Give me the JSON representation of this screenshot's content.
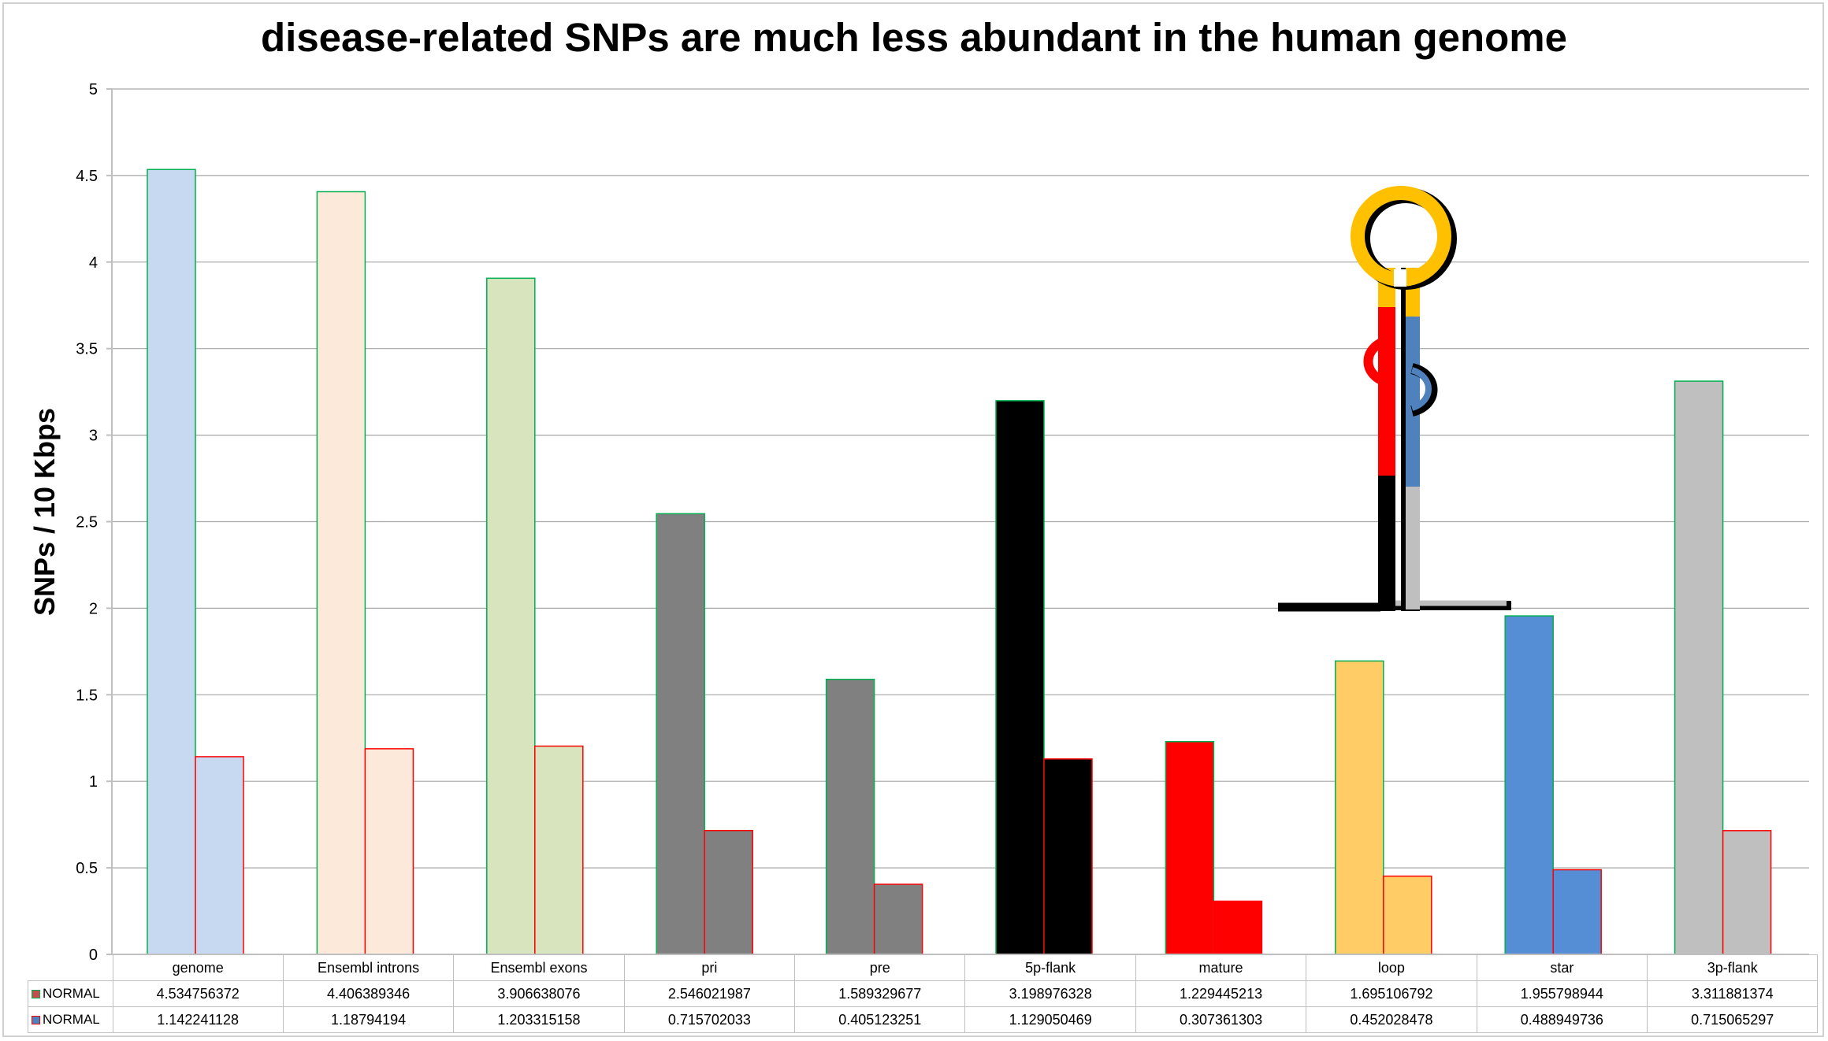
{
  "chart_data": {
    "type": "bar",
    "title": "disease-related SNPs are much less abundant in the human genome",
    "ylabel": "SNPs / 10 Kbps",
    "xlabel": "",
    "ylim": [
      0,
      5
    ],
    "yticks": [
      "0",
      "0.5",
      "1",
      "1.5",
      "2",
      "2.5",
      "3",
      "3.5",
      "4",
      "4.5",
      "5"
    ],
    "grid": true,
    "legend": "data-table",
    "categories": [
      "genome",
      "Ensembl introns",
      "Ensembl exons",
      "pri",
      "pre",
      "5p-flank",
      "mature",
      "loop",
      "star",
      "3p-flank"
    ],
    "fill_colors": [
      "#c6d9f1",
      "#fde9d9",
      "#d7e4bd",
      "#808080",
      "#808080",
      "#000000",
      "#ff0000",
      "#ffcc66",
      "#558ed5",
      "#bfbfbf"
    ],
    "series": [
      {
        "name": "NORMAL",
        "outline": "#00b050",
        "swatch": "#c0504d",
        "values": [
          4.534756372,
          4.406389346,
          3.906638076,
          2.546021987,
          1.589329677,
          3.198976328,
          1.229445213,
          1.695106792,
          1.955798944,
          3.311881374
        ],
        "labels": [
          "4.534756372",
          "4.406389346",
          "3.906638076",
          "2.546021987",
          "1.589329677",
          "3.198976328",
          "1.229445213",
          "1.695106792",
          "1.955798944",
          "3.311881374"
        ]
      },
      {
        "name": "NORMAL",
        "outline": "#ff0000",
        "swatch": "#4f81bd",
        "values": [
          1.142241128,
          1.18794194,
          1.203315158,
          0.715702033,
          0.405123251,
          1.129050469,
          0.307361303,
          0.452028478,
          0.488949736,
          0.715065297
        ],
        "labels": [
          "1.142241128",
          "1.18794194",
          "1.203315158",
          "0.715702033",
          "0.405123251",
          "1.129050469",
          "0.307361303",
          "0.452028478",
          "0.488949736",
          "0.715065297"
        ]
      }
    ]
  },
  "inset_diagram": {
    "name": "hairpin-diagram",
    "colors": {
      "loop": "#ffc000",
      "mature": "#ff0000",
      "star": "#4f81bd",
      "five_flank": "#000000",
      "three_flank": "#bfbfbf"
    }
  }
}
